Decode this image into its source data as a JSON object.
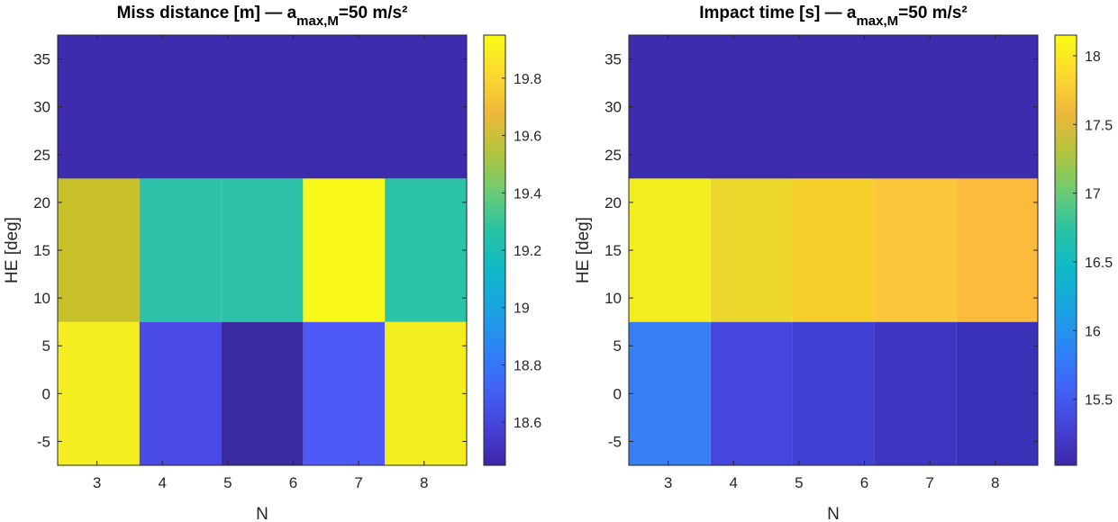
{
  "chart_data": [
    {
      "type": "heatmap",
      "title": "Miss distance [m] — a",
      "title_sub": "max,M",
      "title_tail": "=50 m/s²",
      "xlabel": "N",
      "ylabel": "HE [deg]",
      "x": [
        3,
        4,
        5,
        6,
        7,
        8
      ],
      "x_edges": [
        2.4,
        3.65,
        4.9,
        6.15,
        7.4,
        8.65
      ],
      "xlim": [
        2.4,
        8.65
      ],
      "xticks": [
        "3",
        "4",
        "5",
        "6",
        "7",
        "8"
      ],
      "y_bands": [
        [
          -7.5,
          7.5
        ],
        [
          7.5,
          22.5
        ],
        [
          22.5,
          37.5
        ]
      ],
      "ylim": [
        -7.5,
        37.5
      ],
      "yticks": [
        "-5",
        "0",
        "5",
        "10",
        "15",
        "20",
        "25",
        "30",
        "35"
      ],
      "values": [
        [
          19.94,
          18.68,
          18.49,
          18.74,
          19.94,
          19.93
        ],
        [
          19.52,
          19.24,
          19.24,
          19.94,
          19.23
        ],
        [
          18.45,
          18.45,
          18.45,
          18.45,
          18.45
        ]
      ],
      "colorbar": {
        "min": 18.45,
        "max": 19.95,
        "ticks": [
          "18.6",
          "18.8",
          "19",
          "19.2",
          "19.4",
          "19.6",
          "19.8"
        ]
      },
      "colors": {
        "bottom": [
          "#f4ed1f",
          "#4a4ae6",
          "#3b2ba0",
          "#4f59f5",
          "#f4ed1f",
          "#f4ed1f"
        ],
        "middle": [
          "#c7c029",
          "#2dc2a9",
          "#2dc2a9",
          "#f8f91b",
          "#2dc3a6"
        ],
        "top": "#3e2cae"
      }
    },
    {
      "type": "heatmap",
      "title": "Impact time [s] — a",
      "title_sub": "max,M",
      "title_tail": "=50 m/s²",
      "xlabel": "N",
      "ylabel": "HE [deg]",
      "x": [
        3,
        4,
        5,
        6,
        7,
        8
      ],
      "xlim": [
        2.4,
        8.65
      ],
      "xticks": [
        "3",
        "4",
        "5",
        "6",
        "7",
        "8"
      ],
      "ylim": [
        -7.5,
        37.5
      ],
      "yticks": [
        "-5",
        "0",
        "5",
        "10",
        "15",
        "20",
        "25",
        "30",
        "35"
      ],
      "values": [
        [
          15.88,
          15.43,
          15.35,
          15.28,
          15.23,
          15.12
        ],
        [
          18.12,
          17.98,
          17.87,
          17.81,
          17.72
        ],
        [
          15.05,
          15.05,
          15.05,
          15.05,
          15.05
        ]
      ],
      "colorbar": {
        "min": 15.02,
        "max": 18.15,
        "ticks": [
          "15.5",
          "16",
          "16.5",
          "17",
          "17.5",
          "18"
        ]
      },
      "colors": {
        "bottom": [
          "#377ff5",
          "#4446de",
          "#4040d4",
          "#3c36c2",
          "#3a31b8",
          "#35279f"
        ],
        "middle": [
          "#f4ee1e",
          "#ecd82d",
          "#f6cf2d",
          "#fbc63a",
          "#fcbb3d"
        ],
        "top": "#3e2cae"
      }
    }
  ]
}
